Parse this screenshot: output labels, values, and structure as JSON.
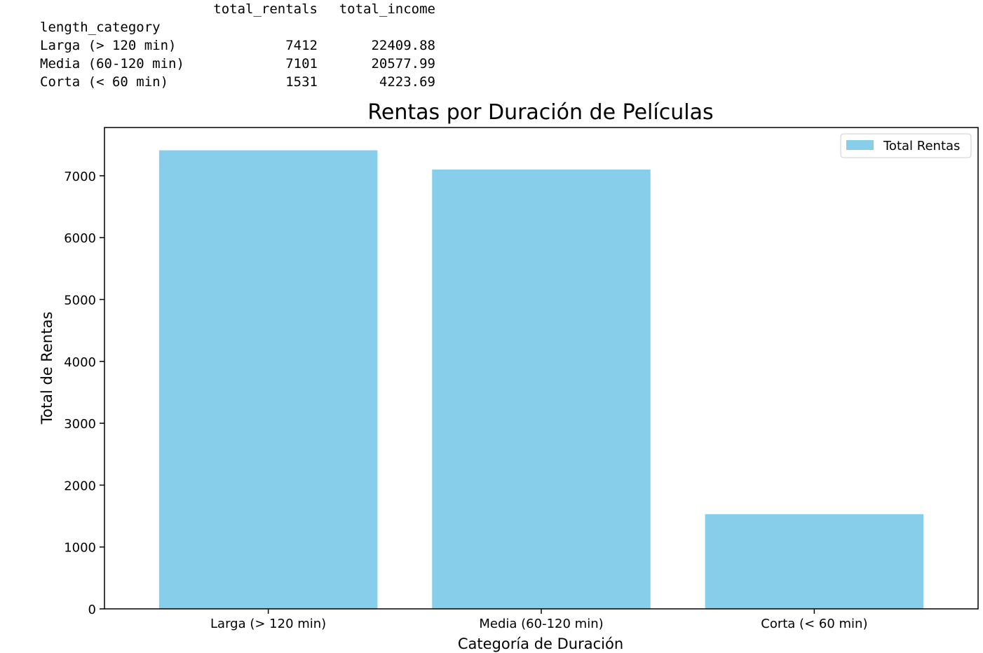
{
  "dataframe": {
    "columns": [
      "total_rentals",
      "total_income"
    ],
    "index_name": "length_category",
    "rows": [
      {
        "label": "Larga (> 120 min)",
        "total_rentals": "7412",
        "total_income": "22409.88"
      },
      {
        "label": "Media (60-120 min)",
        "total_rentals": "7101",
        "total_income": "20577.99"
      },
      {
        "label": "Corta (< 60 min)",
        "total_rentals": "1531",
        "total_income": "4223.69"
      }
    ]
  },
  "chart_data": {
    "type": "bar",
    "title": "Rentas por Duración de Películas",
    "xlabel": "Categoría de Duración",
    "ylabel": "Total de Rentas",
    "categories": [
      "Larga (> 120 min)",
      "Media (60-120 min)",
      "Corta (< 60 min)"
    ],
    "series": [
      {
        "name": "Total Rentas",
        "values": [
          7412,
          7101,
          1531
        ],
        "color": "#87ceeb"
      }
    ],
    "ylim": [
      0,
      7780
    ],
    "yticks": [
      0,
      1000,
      2000,
      3000,
      4000,
      5000,
      6000,
      7000
    ],
    "grid": false,
    "legend": "top-right"
  }
}
